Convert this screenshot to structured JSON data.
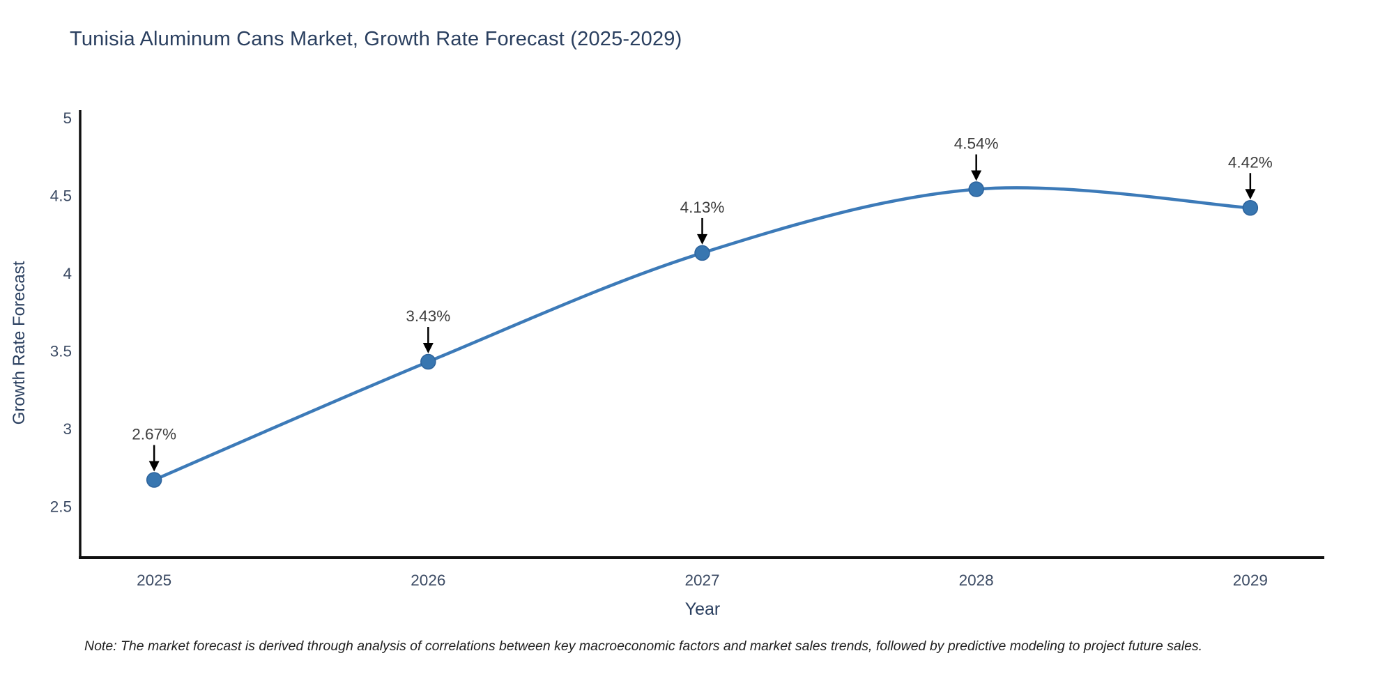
{
  "chart_data": {
    "type": "line",
    "title": "Tunisia Aluminum Cans Market, Growth Rate Forecast (2025-2029)",
    "xlabel": "Year",
    "ylabel": "Growth Rate Forecast",
    "categories": [
      2025,
      2026,
      2027,
      2028,
      2029
    ],
    "values": [
      2.67,
      3.43,
      4.13,
      4.54,
      4.42
    ],
    "point_labels": [
      "2.67%",
      "3.43%",
      "4.13%",
      "4.54%",
      "4.42%"
    ],
    "yticks": [
      2.5,
      3,
      3.5,
      4,
      4.5,
      5
    ],
    "ytick_labels": [
      "2.5",
      "3",
      "3.5",
      "4",
      "4.5",
      "5"
    ],
    "xtick_labels": [
      "2025",
      "2026",
      "2027",
      "2028",
      "2029"
    ],
    "ylim": [
      2.17,
      5.04
    ],
    "xlim": [
      2024.73,
      2029.27
    ],
    "grid": false,
    "legend": "none",
    "line_shape": "spline",
    "colors": {
      "line": "#3c7ab8",
      "marker": "#3876b0",
      "marker_edge": "#2d639c",
      "axis": "#111111",
      "tick_text": "#3b4a63",
      "title_text": "#2a3f5f",
      "annotation_text": "#3d3d3d",
      "arrow": "#000000",
      "background": "#ffffff"
    }
  },
  "note": "Note: The market forecast is derived through analysis of correlations between key macroeconomic factors and market sales trends, followed by predictive modeling to project future sales."
}
